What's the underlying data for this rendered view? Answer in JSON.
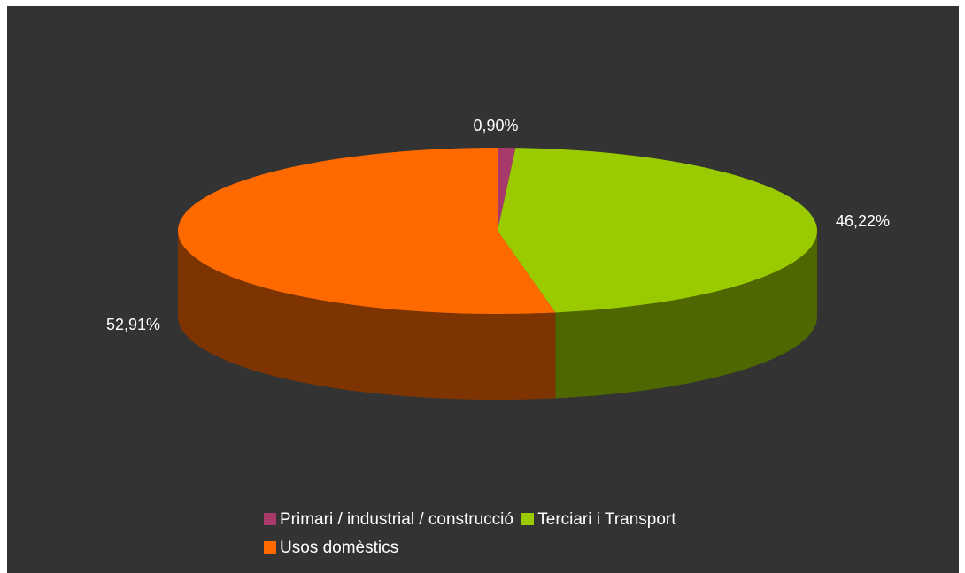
{
  "chart_data": {
    "type": "pie",
    "style": "3d",
    "slices": [
      {
        "label": "Primari / industrial / construcció",
        "value": 0.9,
        "display": "0,90%",
        "color": "#A83A6B",
        "side_color": "#5A1E38"
      },
      {
        "label": "Terciari i Transport",
        "value": 46.22,
        "display": "46,22%",
        "color": "#9ACB00",
        "side_color": "#4E6700"
      },
      {
        "label": "Usos domèstics",
        "value": 52.91,
        "display": "52,91%",
        "color": "#FF6A00",
        "side_color": "#7E3400"
      }
    ],
    "legend_position": "bottom",
    "background": "#333333"
  }
}
